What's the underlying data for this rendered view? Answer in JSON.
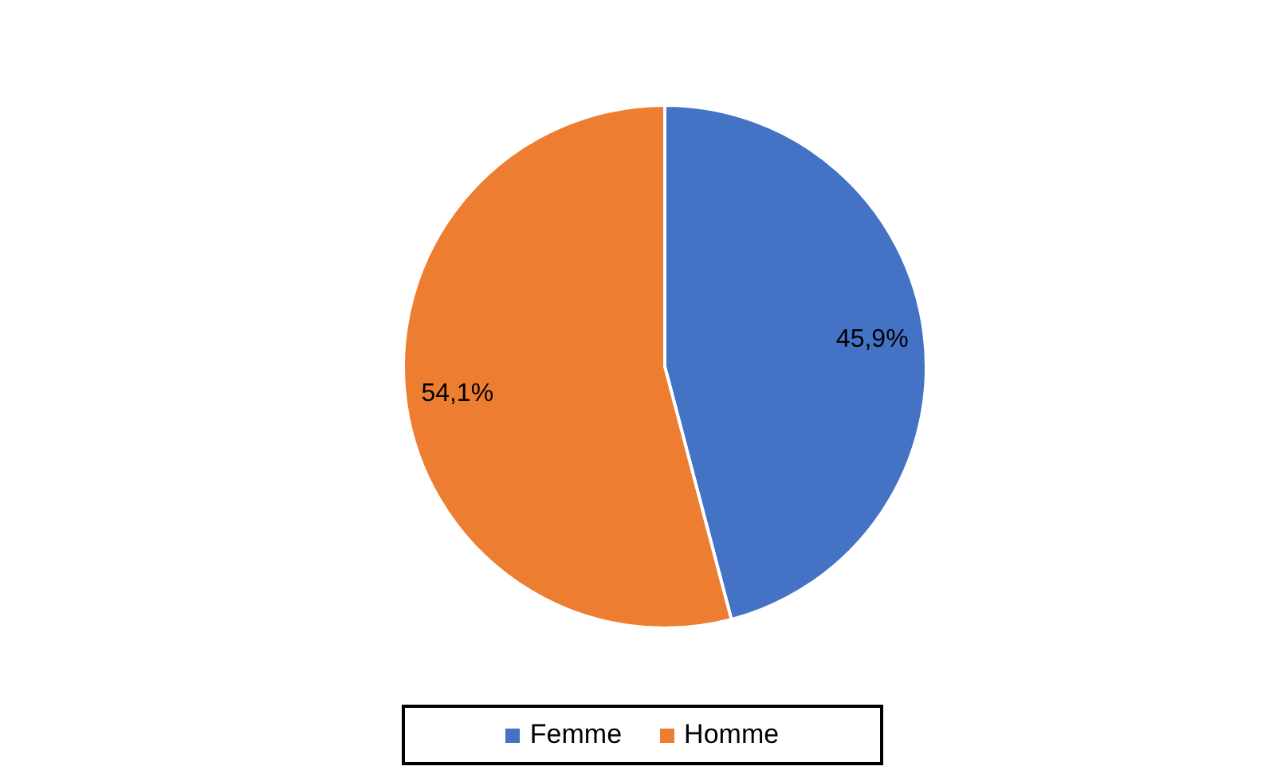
{
  "chart_data": {
    "type": "pie",
    "categories": [
      "Femme",
      "Homme"
    ],
    "values": [
      45.9,
      54.1
    ],
    "colors": [
      "#4472c4",
      "#ed7d31"
    ],
    "value_labels": [
      "45,9%",
      "54,1%"
    ],
    "legend": "bottom"
  }
}
